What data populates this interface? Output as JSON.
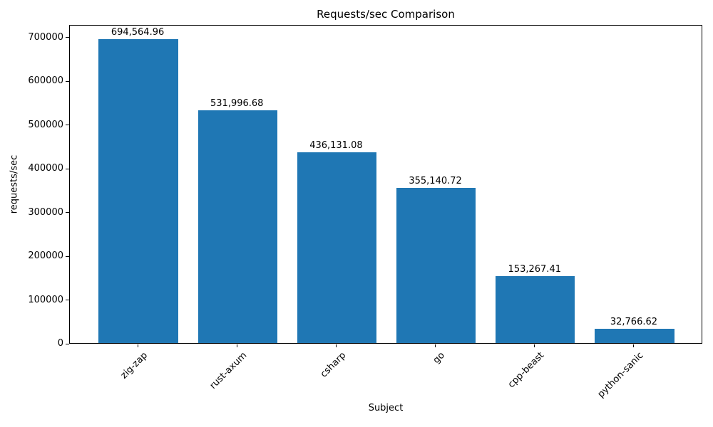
{
  "chart_data": {
    "type": "bar",
    "title": "Requests/sec Comparison",
    "xlabel": "Subject",
    "ylabel": "requests/sec",
    "categories": [
      "zig-zap",
      "rust-axum",
      "csharp",
      "go",
      "cpp-beast",
      "python-sanic"
    ],
    "values": [
      694564.96,
      531996.68,
      436131.08,
      355140.72,
      153267.41,
      32766.62
    ],
    "value_labels": [
      "694,564.96",
      "531,996.68",
      "436,131.08",
      "355,140.72",
      "153,267.41",
      "32,766.62"
    ],
    "bar_color": "#1f77b4",
    "ylim": [
      0,
      729293.21
    ],
    "yticks": [
      0,
      100000,
      200000,
      300000,
      400000,
      500000,
      600000,
      700000
    ],
    "ytick_labels": [
      "0",
      "100000",
      "200000",
      "300000",
      "400000",
      "500000",
      "600000",
      "700000"
    ],
    "grid": false,
    "legend": null,
    "bar_width_fraction": 0.8
  }
}
